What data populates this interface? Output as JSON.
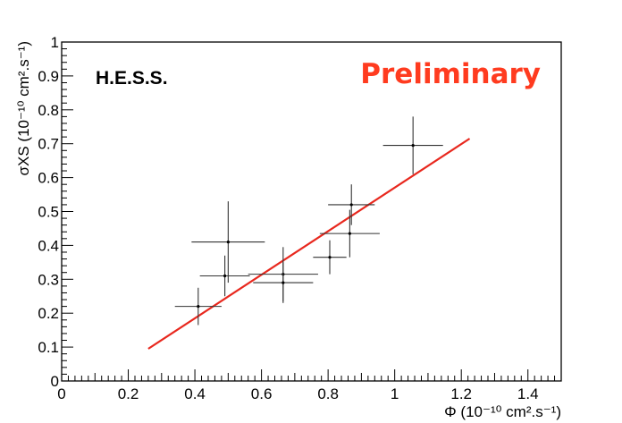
{
  "chart_data": {
    "type": "scatter",
    "title": "",
    "xlabel": "Φ (10⁻¹⁰ cm².s⁻¹)",
    "ylabel": "σXS (10⁻¹⁰ cm².s⁻¹)",
    "xlim": [
      0,
      1.5
    ],
    "ylim": [
      0,
      1
    ],
    "xticks": [
      {
        "value": 0,
        "label": "0"
      },
      {
        "value": 0.2,
        "label": "0.2"
      },
      {
        "value": 0.4,
        "label": "0.4"
      },
      {
        "value": 0.6,
        "label": "0.6"
      },
      {
        "value": 0.8,
        "label": "0.8"
      },
      {
        "value": 1.0,
        "label": "1"
      },
      {
        "value": 1.2,
        "label": "1.2"
      },
      {
        "value": 1.4,
        "label": "1.4"
      }
    ],
    "yticks": [
      {
        "value": 0,
        "label": "0"
      },
      {
        "value": 0.1,
        "label": "0.1"
      },
      {
        "value": 0.2,
        "label": "0.2"
      },
      {
        "value": 0.3,
        "label": "0.3"
      },
      {
        "value": 0.4,
        "label": "0.4"
      },
      {
        "value": 0.5,
        "label": "0.5"
      },
      {
        "value": 0.6,
        "label": "0.6"
      },
      {
        "value": 0.7,
        "label": "0.7"
      },
      {
        "value": 0.8,
        "label": "0.8"
      },
      {
        "value": 0.9,
        "label": "0.9"
      },
      {
        "value": 1.0,
        "label": "1"
      }
    ],
    "points": [
      {
        "x": 0.41,
        "y": 0.22,
        "xerr": 0.07,
        "yerr": 0.055
      },
      {
        "x": 0.49,
        "y": 0.31,
        "xerr": 0.075,
        "yerr": 0.06
      },
      {
        "x": 0.5,
        "y": 0.41,
        "xerr": 0.11,
        "yerr": 0.12
      },
      {
        "x": 0.665,
        "y": 0.315,
        "xerr": 0.105,
        "yerr": 0.08
      },
      {
        "x": 0.665,
        "y": 0.29,
        "xerr": 0.09,
        "yerr": 0.06
      },
      {
        "x": 0.805,
        "y": 0.365,
        "xerr": 0.05,
        "yerr": 0.05
      },
      {
        "x": 0.865,
        "y": 0.435,
        "xerr": 0.09,
        "yerr": 0.07
      },
      {
        "x": 0.87,
        "y": 0.52,
        "xerr": 0.07,
        "yerr": 0.06
      },
      {
        "x": 1.055,
        "y": 0.695,
        "xerr": 0.09,
        "yerr": 0.085
      }
    ],
    "fit_line": {
      "x": [
        0.26,
        1.225
      ],
      "y": [
        0.095,
        0.715
      ],
      "color": "#e8281e"
    },
    "annotations": {
      "experiment": "H.E.S.S.",
      "status": "Preliminary",
      "status_color": "#ff3b1f"
    },
    "grid": false
  }
}
